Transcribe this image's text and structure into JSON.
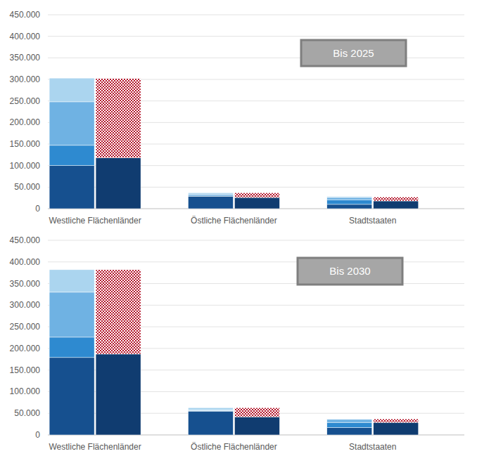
{
  "chart_data": [
    {
      "type": "bar",
      "stacked": true,
      "grid": true,
      "annotation": "Bis 2025",
      "categories": [
        "Westliche Flächenländer",
        null,
        "Östliche Flächenländer",
        null,
        "Stadtstaaten",
        null
      ],
      "ylim": [
        0,
        450000
      ],
      "yticks": [
        0,
        {
          "value": 50000,
          "label": "50.000"
        },
        {
          "value": 100000,
          "label": "100.000"
        },
        {
          "value": 150000,
          "label": "150.000"
        },
        {
          "value": 200000,
          "label": "200.000"
        },
        {
          "value": 250000,
          "label": "250.000"
        },
        {
          "value": 300000,
          "label": "300.000"
        },
        {
          "value": 350000,
          "label": "350.000"
        },
        {
          "value": 400000,
          "label": "400.000"
        },
        {
          "value": 450000,
          "label": "450.000"
        }
      ],
      "series": [
        {
          "color": "#16508f",
          "values": [
            100000,
            null,
            29000,
            null,
            10000,
            null
          ]
        },
        {
          "color": "#2e8ad0",
          "values": [
            47000,
            null,
            2000,
            null,
            10000,
            null
          ]
        },
        {
          "color": "#6fb2e3",
          "values": [
            101000,
            null,
            3000,
            null,
            6000,
            null
          ]
        },
        {
          "color": "#abd5ef",
          "values": [
            55000,
            null,
            3000,
            null,
            2000,
            null
          ]
        },
        {
          "color": "#103c70",
          "values": [
            null,
            118000,
            null,
            26000,
            null,
            18000
          ]
        },
        {
          "color": "#b3152a",
          "marker": "crosshatch",
          "values": [
            null,
            184000,
            null,
            11000,
            null,
            9000
          ]
        }
      ]
    },
    {
      "type": "bar",
      "stacked": true,
      "grid": true,
      "annotation": "Bis 2030",
      "categories": [
        "Westliche Flächenländer",
        null,
        "Östliche Flächenländer",
        null,
        "Stadtstaaten",
        null
      ],
      "ylim": [
        0,
        450000
      ],
      "yticks": [
        0,
        {
          "value": 50000,
          "label": "50.000"
        },
        {
          "value": 100000,
          "label": "100.000"
        },
        {
          "value": 150000,
          "label": "150.000"
        },
        {
          "value": 200000,
          "label": "200.000"
        },
        {
          "value": 250000,
          "label": "250.000"
        },
        {
          "value": 300000,
          "label": "300.000"
        },
        {
          "value": 350000,
          "label": "350.000"
        },
        {
          "value": 400000,
          "label": "400.000"
        },
        {
          "value": 450000,
          "label": "450.000"
        }
      ],
      "series": [
        {
          "color": "#16508f",
          "values": [
            179000,
            null,
            55000,
            null,
            17000,
            null
          ]
        },
        {
          "color": "#2e8ad0",
          "values": [
            47000,
            null,
            1000,
            null,
            12000,
            null
          ]
        },
        {
          "color": "#6fb2e3",
          "values": [
            104000,
            null,
            2000,
            null,
            7000,
            null
          ]
        },
        {
          "color": "#abd5ef",
          "values": [
            52000,
            null,
            5000,
            null,
            1000,
            null
          ]
        },
        {
          "color": "#103c70",
          "values": [
            null,
            187000,
            null,
            42000,
            null,
            29000
          ]
        },
        {
          "color": "#b3152a",
          "marker": "crosshatch",
          "values": [
            null,
            195000,
            null,
            21000,
            null,
            8000
          ]
        }
      ]
    }
  ]
}
